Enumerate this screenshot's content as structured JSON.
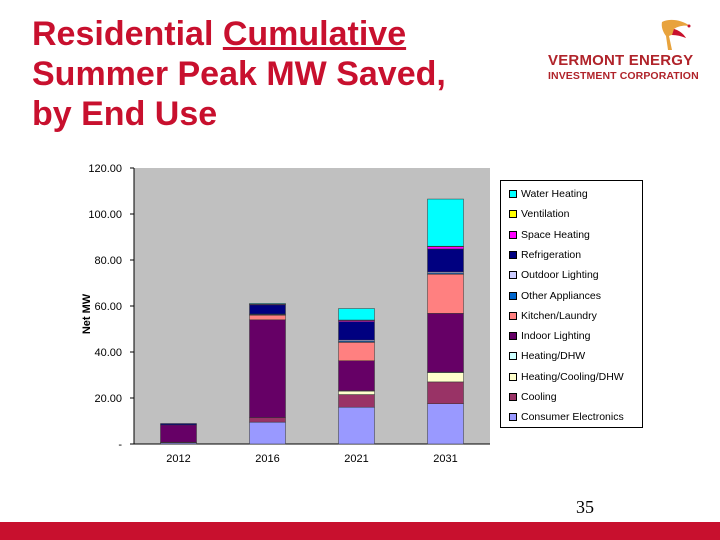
{
  "slide": {
    "title_part1": "Residential ",
    "title_underlined": "Cumulative",
    "title_part2": "Summer Peak MW Saved, by End Use",
    "slide_number": "35"
  },
  "logo": {
    "line1": "VERMONT ENERGY",
    "line2": "INVESTMENT CORPORATION"
  },
  "colors": {
    "title": "#c8102e",
    "bar_strip": "#c8102e",
    "plot_area": "#c0c0c0"
  },
  "chart_data": {
    "type": "bar",
    "stacked": true,
    "ylabel": "Net MW",
    "ylim": [
      0,
      120
    ],
    "y_ticks": [
      {
        "value": 0,
        "label": "-"
      },
      {
        "value": 20,
        "label": "20.00"
      },
      {
        "value": 40,
        "label": "40.00"
      },
      {
        "value": 60,
        "label": "60.00"
      },
      {
        "value": 80,
        "label": "80.00"
      },
      {
        "value": 100,
        "label": "100.00"
      },
      {
        "value": 120,
        "label": "120.00"
      }
    ],
    "categories": [
      "2012",
      "2016",
      "2021",
      "2031"
    ],
    "series": [
      {
        "name": "Consumer Electronics",
        "color": "#9999ff",
        "values": [
          0.5,
          9.5,
          16.0,
          17.5
        ]
      },
      {
        "name": "Cooling",
        "color": "#993366",
        "values": [
          0.3,
          2.0,
          5.5,
          9.5
        ]
      },
      {
        "name": "Heating/Cooling/DHW",
        "color": "#ffffcc",
        "values": [
          0.0,
          0.0,
          1.5,
          4.0
        ]
      },
      {
        "name": "Heating/DHW",
        "color": "#ccffff",
        "values": [
          0.0,
          0.0,
          0.2,
          0.3
        ]
      },
      {
        "name": "Indoor Lighting",
        "color": "#660066",
        "values": [
          7.5,
          42.5,
          13.0,
          25.5
        ]
      },
      {
        "name": "Kitchen/Laundry",
        "color": "#ff8080",
        "values": [
          0.0,
          2.0,
          8.0,
          17.0
        ]
      },
      {
        "name": "Other Appliances",
        "color": "#0066cc",
        "values": [
          0.0,
          0.3,
          0.5,
          0.5
        ]
      },
      {
        "name": "Outdoor Lighting",
        "color": "#ccccff",
        "values": [
          0.0,
          0.2,
          0.5,
          0.5
        ]
      },
      {
        "name": "Refrigeration",
        "color": "#000080",
        "values": [
          0.6,
          4.0,
          8.0,
          10.0
        ]
      },
      {
        "name": "Space Heating",
        "color": "#ff00ff",
        "values": [
          0.0,
          0.3,
          0.5,
          1.0
        ]
      },
      {
        "name": "Ventilation",
        "color": "#ffff00",
        "values": [
          0.0,
          0.0,
          0.2,
          0.2
        ]
      },
      {
        "name": "Water Heating",
        "color": "#00ffff",
        "values": [
          0.0,
          0.3,
          5.0,
          20.5
        ]
      }
    ]
  }
}
